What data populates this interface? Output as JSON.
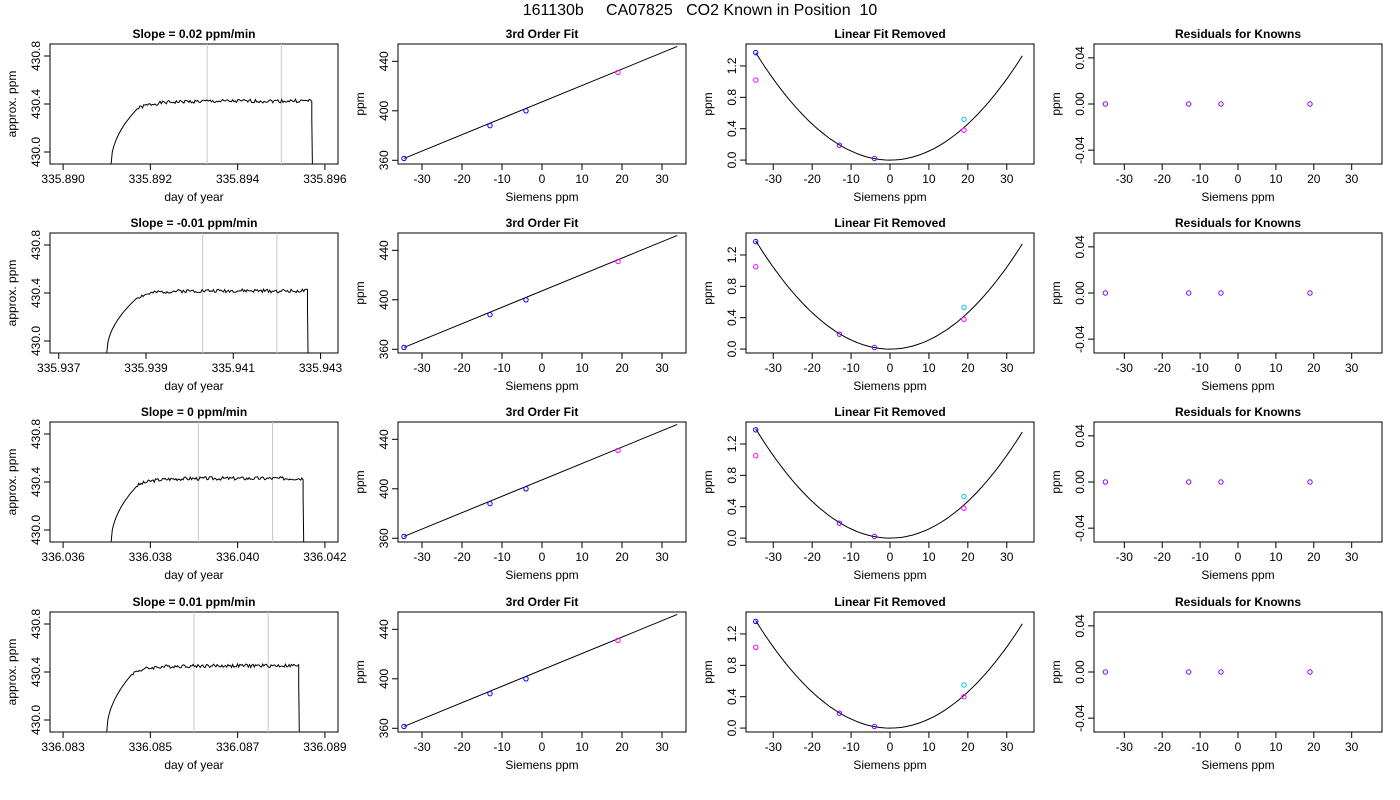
{
  "title": "161130b     CA07825   CO2 Known in Position  10",
  "colors": {
    "trace": "#000000",
    "axis": "#000000",
    "vline": "#c8c8c8",
    "blue": "#0000ff",
    "magenta": "#ff00ff",
    "cyan": "#00bfff",
    "purple": "#8000ff"
  },
  "chart_data": [
    {
      "type": "line",
      "kind": "trace",
      "title": "Slope =  0.02  ppm/min",
      "xlabel": "day of year",
      "ylabel": "approx. ppm",
      "xlim": [
        335.8897,
        335.8963
      ],
      "ylim": [
        429.9,
        430.9
      ],
      "xticks": [
        335.89,
        335.892,
        335.894,
        335.896
      ],
      "xtick_labels": [
        "335.890",
        "335.892",
        "335.894",
        "335.896"
      ],
      "yticks": [
        430.0,
        430.4,
        430.8
      ],
      "ytick_labels": [
        "430.0",
        "430.4",
        "430.8"
      ],
      "vlines": [
        335.8933,
        335.895
      ],
      "trace": {
        "t_start": 335.8911,
        "t_rise": 335.8917,
        "t_end": 335.8957,
        "t_drop": 335.8957,
        "level": 430.42,
        "slope": 0.02,
        "seed": 1
      }
    },
    {
      "type": "scatter",
      "kind": "fit3",
      "title": "3rd Order Fit",
      "xlabel": "Siemens ppm",
      "ylabel": "ppm",
      "xlim": [
        -36,
        36
      ],
      "ylim": [
        357,
        454
      ],
      "xticks": [
        -30,
        -20,
        -10,
        0,
        10,
        20,
        30
      ],
      "yticks": [
        360,
        400,
        440
      ],
      "line": {
        "x": [
          -34.5,
          33.8
        ],
        "y": [
          361.5,
          452
        ]
      },
      "points": [
        {
          "x": -34.5,
          "y": 361.5,
          "c": "blue"
        },
        {
          "x": -13,
          "y": 388,
          "c": "blue"
        },
        {
          "x": -4,
          "y": 400,
          "c": "blue"
        },
        {
          "x": 19,
          "y": 431,
          "c": "magenta"
        }
      ]
    },
    {
      "type": "scatter",
      "kind": "linrem",
      "title": "Linear Fit Removed",
      "xlabel": "Siemens ppm",
      "ylabel": "ppm",
      "xlim": [
        -37,
        37
      ],
      "ylim": [
        -0.05,
        1.48
      ],
      "xticks": [
        -30,
        -20,
        -10,
        0,
        10,
        20,
        30
      ],
      "yticks": [
        0.0,
        0.4,
        0.8,
        1.2
      ],
      "ytick_labels": [
        "0.0",
        "0.4",
        "0.8",
        "1.2"
      ],
      "curve": {
        "a": 0.00115,
        "x0": 0,
        "xmin": -34.5,
        "xmax": 34
      },
      "points": [
        {
          "x": -34.5,
          "y": 1.37,
          "c": "blue"
        },
        {
          "x": -34.5,
          "y": 1.02,
          "c": "magenta"
        },
        {
          "x": -13,
          "y": 0.19,
          "c": "purple"
        },
        {
          "x": -4,
          "y": 0.02,
          "c": "purple"
        },
        {
          "x": 19,
          "y": 0.52,
          "c": "cyan"
        },
        {
          "x": 19,
          "y": 0.38,
          "c": "magenta"
        }
      ]
    },
    {
      "type": "scatter",
      "kind": "resid",
      "title": "Residuals for Knowns",
      "xlabel": "Siemens ppm",
      "ylabel": "ppm",
      "xlim": [
        -38,
        38
      ],
      "ylim": [
        -0.052,
        0.052
      ],
      "xticks": [
        -30,
        -20,
        -10,
        0,
        10,
        20,
        30
      ],
      "yticks": [
        -0.04,
        0.0,
        0.04
      ],
      "ytick_labels": [
        "-0.04",
        "0.00",
        "0.04"
      ],
      "points": [
        {
          "x": -35,
          "y": 0,
          "c": "purple"
        },
        {
          "x": -13,
          "y": 0,
          "c": "purple"
        },
        {
          "x": -4.5,
          "y": 0,
          "c": "purple"
        },
        {
          "x": 19,
          "y": 0,
          "c": "purple"
        }
      ]
    },
    {
      "type": "line",
      "kind": "trace",
      "title": "Slope =  -0.01  ppm/min",
      "xlabel": "day of year",
      "ylabel": "approx. ppm",
      "xlim": [
        335.9368,
        335.9434
      ],
      "ylim": [
        429.9,
        430.9
      ],
      "xticks": [
        335.937,
        335.939,
        335.941,
        335.943
      ],
      "xtick_labels": [
        "335.937",
        "335.939",
        "335.941",
        "335.943"
      ],
      "yticks": [
        430.0,
        430.4,
        430.8
      ],
      "ytick_labels": [
        "430.0",
        "430.4",
        "430.8"
      ],
      "vlines": [
        335.9403,
        335.942
      ],
      "trace": {
        "t_start": 335.9381,
        "t_rise": 335.9388,
        "t_end": 335.9427,
        "t_drop": 335.9427,
        "level": 430.42,
        "slope": -0.01,
        "seed": 2
      }
    },
    {
      "type": "scatter",
      "kind": "fit3",
      "title": "3rd Order Fit",
      "xlabel": "Siemens ppm",
      "ylabel": "ppm",
      "xlim": [
        -36,
        36
      ],
      "ylim": [
        357,
        454
      ],
      "xticks": [
        -30,
        -20,
        -10,
        0,
        10,
        20,
        30
      ],
      "yticks": [
        360,
        400,
        440
      ],
      "line": {
        "x": [
          -34.5,
          33.8
        ],
        "y": [
          361.5,
          452
        ]
      },
      "points": [
        {
          "x": -34.5,
          "y": 361.5,
          "c": "blue"
        },
        {
          "x": -13,
          "y": 388,
          "c": "blue"
        },
        {
          "x": -4,
          "y": 400,
          "c": "blue"
        },
        {
          "x": 19,
          "y": 431,
          "c": "magenta"
        }
      ]
    },
    {
      "type": "scatter",
      "kind": "linrem",
      "title": "Linear Fit Removed",
      "xlabel": "Siemens ppm",
      "ylabel": "ppm",
      "xlim": [
        -37,
        37
      ],
      "ylim": [
        -0.05,
        1.48
      ],
      "xticks": [
        -30,
        -20,
        -10,
        0,
        10,
        20,
        30
      ],
      "yticks": [
        0.0,
        0.4,
        0.8,
        1.2
      ],
      "ytick_labels": [
        "0.0",
        "0.4",
        "0.8",
        "1.2"
      ],
      "curve": {
        "a": 0.00116,
        "x0": 0,
        "xmin": -34.5,
        "xmax": 34
      },
      "points": [
        {
          "x": -34.5,
          "y": 1.37,
          "c": "blue"
        },
        {
          "x": -34.5,
          "y": 1.05,
          "c": "magenta"
        },
        {
          "x": -13,
          "y": 0.19,
          "c": "purple"
        },
        {
          "x": -4,
          "y": 0.02,
          "c": "purple"
        },
        {
          "x": 19,
          "y": 0.53,
          "c": "cyan"
        },
        {
          "x": 19,
          "y": 0.38,
          "c": "magenta"
        }
      ]
    },
    {
      "type": "scatter",
      "kind": "resid",
      "title": "Residuals for Knowns",
      "xlabel": "Siemens ppm",
      "ylabel": "ppm",
      "xlim": [
        -38,
        38
      ],
      "ylim": [
        -0.052,
        0.052
      ],
      "xticks": [
        -30,
        -20,
        -10,
        0,
        10,
        20,
        30
      ],
      "yticks": [
        -0.04,
        0.0,
        0.04
      ],
      "ytick_labels": [
        "-0.04",
        "0.00",
        "0.04"
      ],
      "points": [
        {
          "x": -35,
          "y": 0,
          "c": "purple"
        },
        {
          "x": -13,
          "y": 0,
          "c": "purple"
        },
        {
          "x": -4.5,
          "y": 0,
          "c": "purple"
        },
        {
          "x": 19,
          "y": 0,
          "c": "purple"
        }
      ]
    },
    {
      "type": "line",
      "kind": "trace",
      "title": "Slope =  0  ppm/min",
      "xlabel": "day of year",
      "ylabel": "approx. ppm",
      "xlim": [
        336.0357,
        336.0423
      ],
      "ylim": [
        429.9,
        430.9
      ],
      "xticks": [
        336.036,
        336.038,
        336.04,
        336.042
      ],
      "xtick_labels": [
        "336.036",
        "336.038",
        "336.040",
        "336.042"
      ],
      "yticks": [
        430.0,
        430.4,
        430.8
      ],
      "ytick_labels": [
        "430.0",
        "430.4",
        "430.8"
      ],
      "vlines": [
        336.0391,
        336.0408
      ],
      "trace": {
        "t_start": 336.0371,
        "t_rise": 336.0377,
        "t_end": 336.0415,
        "t_drop": 336.0415,
        "level": 430.43,
        "slope": 0,
        "seed": 3
      }
    },
    {
      "type": "scatter",
      "kind": "fit3",
      "title": "3rd Order Fit",
      "xlabel": "Siemens ppm",
      "ylabel": "ppm",
      "xlim": [
        -36,
        36
      ],
      "ylim": [
        357,
        454
      ],
      "xticks": [
        -30,
        -20,
        -10,
        0,
        10,
        20,
        30
      ],
      "yticks": [
        360,
        400,
        440
      ],
      "line": {
        "x": [
          -34.5,
          33.8
        ],
        "y": [
          361.5,
          452
        ]
      },
      "points": [
        {
          "x": -34.5,
          "y": 361.5,
          "c": "blue"
        },
        {
          "x": -13,
          "y": 388,
          "c": "blue"
        },
        {
          "x": -4,
          "y": 400,
          "c": "blue"
        },
        {
          "x": 19,
          "y": 431,
          "c": "magenta"
        }
      ]
    },
    {
      "type": "scatter",
      "kind": "linrem",
      "title": "Linear Fit Removed",
      "xlabel": "Siemens ppm",
      "ylabel": "ppm",
      "xlim": [
        -37,
        37
      ],
      "ylim": [
        -0.05,
        1.48
      ],
      "xticks": [
        -30,
        -20,
        -10,
        0,
        10,
        20,
        30
      ],
      "yticks": [
        0.0,
        0.4,
        0.8,
        1.2
      ],
      "ytick_labels": [
        "0.0",
        "0.4",
        "0.8",
        "1.2"
      ],
      "curve": {
        "a": 0.00117,
        "x0": 0,
        "xmin": -34.5,
        "xmax": 34
      },
      "points": [
        {
          "x": -34.5,
          "y": 1.38,
          "c": "blue"
        },
        {
          "x": -34.5,
          "y": 1.05,
          "c": "magenta"
        },
        {
          "x": -13,
          "y": 0.19,
          "c": "purple"
        },
        {
          "x": -4,
          "y": 0.02,
          "c": "purple"
        },
        {
          "x": 19,
          "y": 0.53,
          "c": "cyan"
        },
        {
          "x": 19,
          "y": 0.38,
          "c": "magenta"
        }
      ]
    },
    {
      "type": "scatter",
      "kind": "resid",
      "title": "Residuals for Knowns",
      "xlabel": "Siemens ppm",
      "ylabel": "ppm",
      "xlim": [
        -38,
        38
      ],
      "ylim": [
        -0.052,
        0.052
      ],
      "xticks": [
        -30,
        -20,
        -10,
        0,
        10,
        20,
        30
      ],
      "yticks": [
        -0.04,
        0.0,
        0.04
      ],
      "ytick_labels": [
        "-0.04",
        "0.00",
        "0.04"
      ],
      "points": [
        {
          "x": -35,
          "y": 0,
          "c": "purple"
        },
        {
          "x": -13,
          "y": 0,
          "c": "purple"
        },
        {
          "x": -4.5,
          "y": 0,
          "c": "purple"
        },
        {
          "x": 19,
          "y": 0,
          "c": "purple"
        }
      ]
    },
    {
      "type": "line",
      "kind": "trace",
      "title": "Slope =  0.01  ppm/min",
      "xlabel": "day of year",
      "ylabel": "approx. ppm",
      "xlim": [
        336.0827,
        336.0893
      ],
      "ylim": [
        429.9,
        430.9
      ],
      "xticks": [
        336.083,
        336.085,
        336.087,
        336.089
      ],
      "xtick_labels": [
        "336.083",
        "336.085",
        "336.087",
        "336.089"
      ],
      "yticks": [
        430.0,
        430.4,
        430.8
      ],
      "ytick_labels": [
        "430.0",
        "430.4",
        "430.8"
      ],
      "vlines": [
        336.086,
        336.0877
      ],
      "trace": {
        "t_start": 336.084,
        "t_rise": 336.0846,
        "t_end": 336.0884,
        "t_drop": 336.0884,
        "level": 430.45,
        "slope": 0.01,
        "seed": 4
      }
    },
    {
      "type": "scatter",
      "kind": "fit3",
      "title": "3rd Order Fit",
      "xlabel": "Siemens ppm",
      "ylabel": "ppm",
      "xlim": [
        -36,
        36
      ],
      "ylim": [
        357,
        454
      ],
      "xticks": [
        -30,
        -20,
        -10,
        0,
        10,
        20,
        30
      ],
      "yticks": [
        360,
        400,
        440
      ],
      "line": {
        "x": [
          -34.5,
          33.8
        ],
        "y": [
          361.5,
          452
        ]
      },
      "points": [
        {
          "x": -34.5,
          "y": 361.5,
          "c": "blue"
        },
        {
          "x": -13,
          "y": 388,
          "c": "blue"
        },
        {
          "x": -4,
          "y": 400,
          "c": "blue"
        },
        {
          "x": 19,
          "y": 431,
          "c": "magenta"
        }
      ]
    },
    {
      "type": "scatter",
      "kind": "linrem",
      "title": "Linear Fit Removed",
      "xlabel": "Siemens ppm",
      "ylabel": "ppm",
      "xlim": [
        -37,
        37
      ],
      "ylim": [
        -0.05,
        1.48
      ],
      "xticks": [
        -30,
        -20,
        -10,
        0,
        10,
        20,
        30
      ],
      "yticks": [
        0.0,
        0.4,
        0.8,
        1.2
      ],
      "ytick_labels": [
        "0.0",
        "0.4",
        "0.8",
        "1.2"
      ],
      "curve": {
        "a": 0.00115,
        "x0": 0,
        "xmin": -34.5,
        "xmax": 34
      },
      "points": [
        {
          "x": -34.5,
          "y": 1.36,
          "c": "blue"
        },
        {
          "x": -34.5,
          "y": 1.03,
          "c": "magenta"
        },
        {
          "x": -13,
          "y": 0.19,
          "c": "purple"
        },
        {
          "x": -4,
          "y": 0.02,
          "c": "purple"
        },
        {
          "x": 19,
          "y": 0.55,
          "c": "cyan"
        },
        {
          "x": 19,
          "y": 0.4,
          "c": "magenta"
        }
      ]
    },
    {
      "type": "scatter",
      "kind": "resid",
      "title": "Residuals for Knowns",
      "xlabel": "Siemens ppm",
      "ylabel": "ppm",
      "xlim": [
        -38,
        38
      ],
      "ylim": [
        -0.052,
        0.052
      ],
      "xticks": [
        -30,
        -20,
        -10,
        0,
        10,
        20,
        30
      ],
      "yticks": [
        -0.04,
        0.0,
        0.04
      ],
      "ytick_labels": [
        "-0.04",
        "0.00",
        "0.04"
      ],
      "points": [
        {
          "x": -35,
          "y": 0,
          "c": "purple"
        },
        {
          "x": -13,
          "y": 0,
          "c": "purple"
        },
        {
          "x": -4.5,
          "y": 0,
          "c": "purple"
        },
        {
          "x": 19,
          "y": 0,
          "c": "purple"
        }
      ]
    }
  ]
}
